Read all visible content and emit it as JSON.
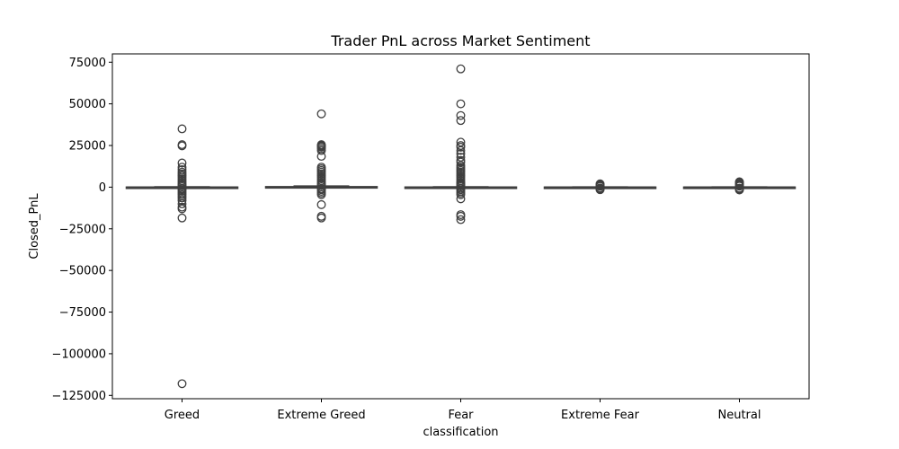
{
  "chart_data": {
    "type": "box",
    "title": "Trader PnL across Market Sentiment",
    "xlabel": "classification",
    "ylabel": "Closed_PnL",
    "ylim": [
      -127000,
      80000
    ],
    "yticks": [
      75000,
      50000,
      25000,
      0,
      -25000,
      -50000,
      -75000,
      -100000,
      -125000
    ],
    "ytick_labels": [
      "75000",
      "50000",
      "25000",
      "0",
      "−25000",
      "−50000",
      "−75000",
      "−100000",
      "−125000"
    ],
    "grid": false,
    "box_color": "#3f6fae",
    "categories": [
      "Greed",
      "Extreme Greed",
      "Fear",
      "Extreme Fear",
      "Neutral"
    ],
    "series": [
      {
        "category": "Greed",
        "whisker_low": -150,
        "q1": -20,
        "median": 0,
        "q3": 40,
        "whisker_high": 200,
        "outliers": [
          35000,
          25500,
          24800,
          14500,
          12000,
          10500,
          9000,
          8000,
          7000,
          6000,
          5000,
          4000,
          3000,
          2000,
          1200,
          800,
          -800,
          -1500,
          -2500,
          -3500,
          -4500,
          -5500,
          -6500,
          -8000,
          -10000,
          -12000,
          -13000,
          -18500,
          -118000
        ]
      },
      {
        "category": "Extreme Greed",
        "whisker_low": -200,
        "q1": -20,
        "median": 0,
        "q3": 300,
        "whisker_high": 700,
        "outliers": [
          44000,
          25500,
          25000,
          24500,
          24000,
          23000,
          22000,
          18500,
          12000,
          11000,
          10000,
          9000,
          8000,
          7000,
          6000,
          5000,
          4000,
          3000,
          2000,
          1500,
          1000,
          -1000,
          -1500,
          -2500,
          -3500,
          -4500,
          -10500,
          -17500,
          -18500
        ]
      },
      {
        "category": "Fear",
        "whisker_low": -150,
        "q1": -20,
        "median": 0,
        "q3": 60,
        "whisker_high": 250,
        "outliers": [
          71000,
          50000,
          43000,
          40000,
          27000,
          25000,
          24000,
          22000,
          20000,
          18000,
          16000,
          15000,
          13000,
          12000,
          11000,
          10000,
          9000,
          8000,
          7000,
          6000,
          5000,
          4000,
          3000,
          2500,
          2000,
          1500,
          1000,
          700,
          -700,
          -1500,
          -2500,
          -3500,
          -4500,
          -7000,
          -16500,
          -17500,
          -19500
        ]
      },
      {
        "category": "Extreme Fear",
        "whisker_low": -120,
        "q1": -10,
        "median": 0,
        "q3": 20,
        "whisker_high": 120,
        "outliers": [
          2000,
          1500,
          1100,
          800,
          500,
          -500,
          -800,
          -1200,
          -1500
        ]
      },
      {
        "category": "Neutral",
        "whisker_low": -150,
        "q1": -10,
        "median": 0,
        "q3": 25,
        "whisker_high": 180,
        "outliers": [
          3200,
          2800,
          2200,
          1800,
          1300,
          900,
          600,
          -600,
          -900,
          -1300,
          -1700
        ]
      }
    ]
  }
}
